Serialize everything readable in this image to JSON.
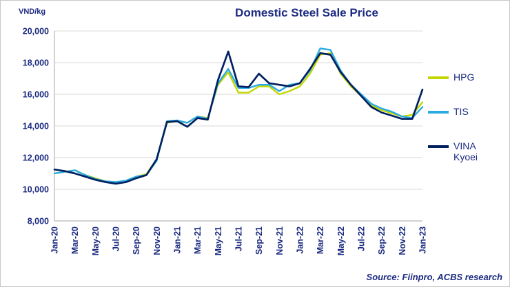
{
  "chart_data": {
    "type": "line",
    "title": "Domestic Steel Sale Price",
    "ylabel": "VND/kg",
    "source": "Source: Fiinpro, ACBS research",
    "ylim": [
      8000,
      20000
    ],
    "ytick_step": 2000,
    "grid": true,
    "legend_position": "right",
    "x": [
      "Jan-20",
      "Feb-20",
      "Mar-20",
      "Apr-20",
      "May-20",
      "Jun-20",
      "Jul-20",
      "Aug-20",
      "Sep-20",
      "Oct-20",
      "Nov-20",
      "Dec-20",
      "Jan-21",
      "Feb-21",
      "Mar-21",
      "Apr-21",
      "May-21",
      "Jun-21",
      "Jul-21",
      "Aug-21",
      "Sep-21",
      "Oct-21",
      "Nov-21",
      "Dec-21",
      "Jan-22",
      "Feb-22",
      "Mar-22",
      "Apr-22",
      "May-22",
      "Jun-22",
      "Jul-22",
      "Aug-22",
      "Sep-22",
      "Oct-22",
      "Nov-22",
      "Dec-22",
      "Jan-23"
    ],
    "x_tick_every": 2,
    "series": [
      {
        "name": "HPG",
        "color": "#c3d600",
        "stroke_width": 2.4,
        "values": [
          11000,
          11100,
          11200,
          10900,
          10700,
          10500,
          10450,
          10500,
          10800,
          10950,
          11900,
          14200,
          14300,
          14200,
          14600,
          14500,
          16600,
          17400,
          16100,
          16100,
          16500,
          16500,
          16000,
          16200,
          16500,
          17300,
          18500,
          18600,
          17300,
          16500,
          15900,
          15300,
          15000,
          14800,
          14600,
          14700,
          15500
        ]
      },
      {
        "name": "TIS",
        "color": "#29abe2",
        "stroke_width": 2.4,
        "values": [
          11000,
          11100,
          11200,
          10900,
          10650,
          10500,
          10450,
          10550,
          10800,
          10900,
          11800,
          14300,
          14350,
          14200,
          14600,
          14450,
          16700,
          17600,
          16400,
          16400,
          16600,
          16600,
          16200,
          16600,
          16700,
          17500,
          18900,
          18800,
          17500,
          16600,
          16000,
          15400,
          15100,
          14900,
          14600,
          14500,
          15200
        ]
      },
      {
        "name": "VINA Kyoei",
        "color": "#002060",
        "stroke_width": 2.7,
        "values": [
          11250,
          11150,
          11000,
          10800,
          10600,
          10450,
          10350,
          10450,
          10700,
          10900,
          11900,
          14250,
          14300,
          13950,
          14500,
          14400,
          16900,
          18700,
          16500,
          16450,
          17300,
          16700,
          16600,
          16500,
          16700,
          17600,
          18600,
          18500,
          17400,
          16600,
          15900,
          15200,
          14850,
          14650,
          14450,
          14450,
          16300
        ]
      }
    ],
    "style": {
      "navy": "#1b2a80",
      "gridline": "#d9d9d9",
      "axis": "#a6a6a6"
    }
  }
}
